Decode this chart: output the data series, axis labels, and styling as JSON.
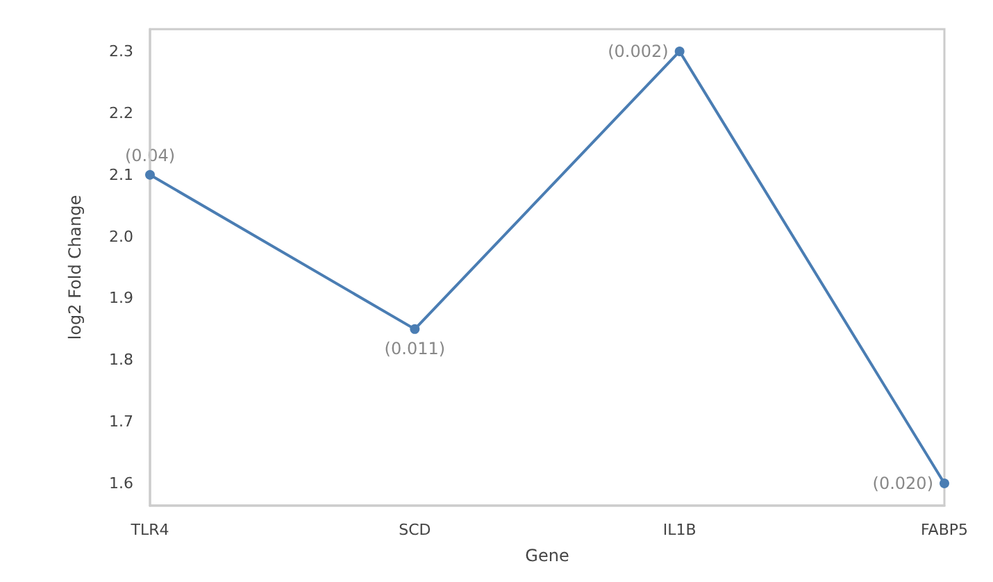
{
  "chart_data": {
    "type": "line",
    "xlabel": "Gene",
    "ylabel": "log2 Fold Change",
    "categories": [
      "TLR4",
      "SCD",
      "IL1B",
      "FABP5"
    ],
    "series": [
      {
        "color": "#4a7db3",
        "values": [
          2.1,
          1.85,
          2.3,
          1.6
        ]
      }
    ],
    "annotations": [
      {
        "text": "(0.04)",
        "x": "TLR4",
        "y": 2.1
      },
      {
        "text": "(0.011)",
        "x": "SCD",
        "y": 1.85
      },
      {
        "text": "(0.002)",
        "x": "IL1B",
        "y": 2.3
      },
      {
        "text": "(0.020)",
        "x": "FABP5",
        "y": 1.6
      }
    ],
    "ylim": [
      1.564,
      2.336
    ],
    "yticks": [
      1.6,
      1.7,
      1.8,
      1.9,
      {
        "value": 2,
        "label": "2.0"
      },
      2.1,
      2.2,
      2.3
    ],
    "grid": false,
    "marker": "circle",
    "line_style": "solid"
  }
}
